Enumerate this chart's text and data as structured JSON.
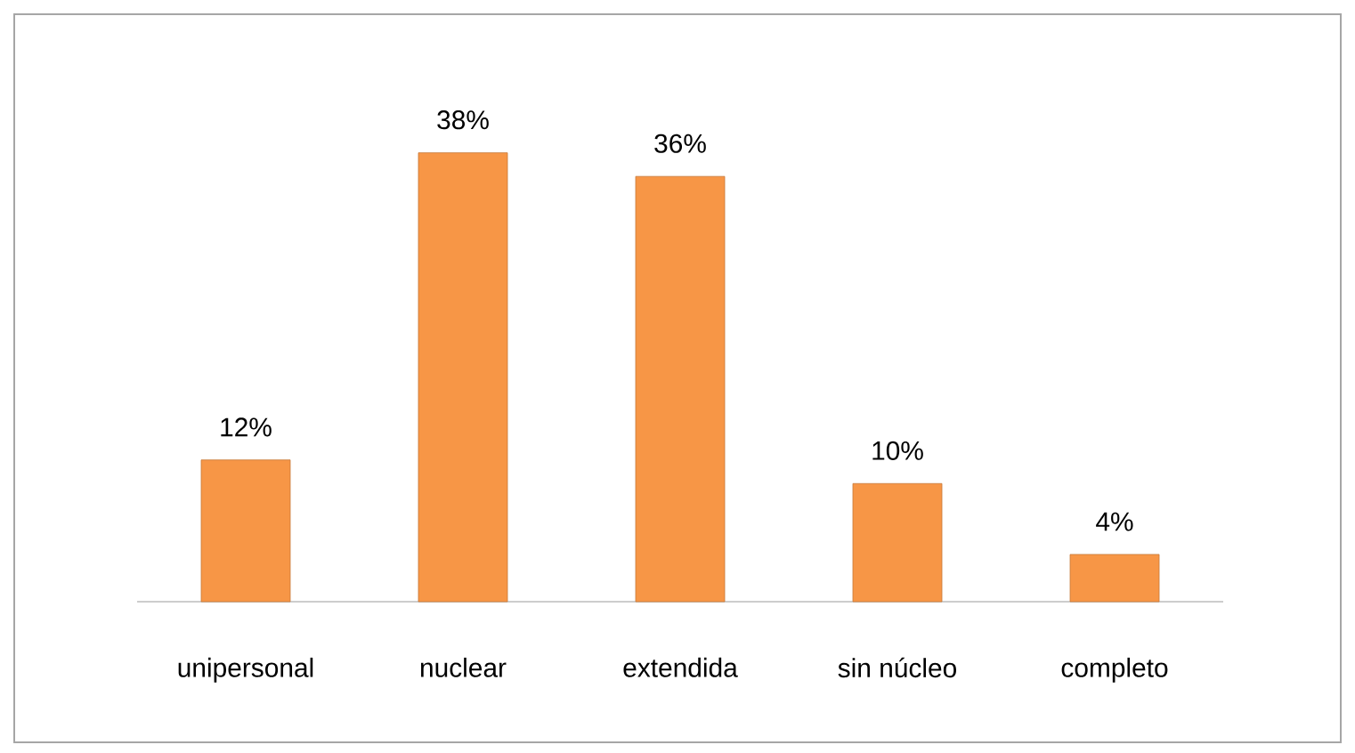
{
  "chart_data": {
    "type": "bar",
    "categories": [
      "unipersonal",
      "nuclear",
      "extendida",
      "sin núcleo",
      "completo"
    ],
    "values": [
      12,
      38,
      36,
      10,
      4
    ],
    "value_labels": [
      "12%",
      "38%",
      "36%",
      "10%",
      "4%"
    ],
    "color": "#f79646"
  }
}
